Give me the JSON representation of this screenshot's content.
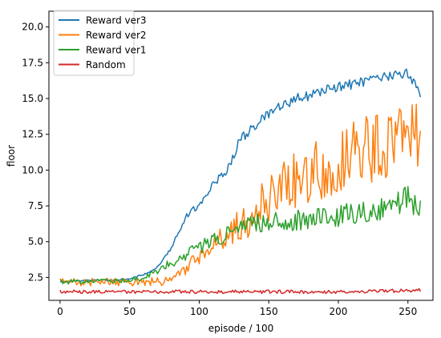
{
  "chart_data": {
    "type": "line",
    "xlabel": "episode / 100",
    "ylabel": "floor",
    "xlim": [
      -8,
      268
    ],
    "ylim": [
      0.9,
      21.1
    ],
    "xticks": [
      0,
      50,
      100,
      150,
      200,
      250
    ],
    "yticks": [
      2.5,
      5.0,
      7.5,
      10.0,
      12.5,
      15.0,
      17.5,
      20.0
    ],
    "xtick_labels": [
      "0",
      "50",
      "100",
      "150",
      "200",
      "250"
    ],
    "ytick_labels": [
      "2.5",
      "5.0",
      "7.5",
      "10.0",
      "12.5",
      "15.0",
      "17.5",
      "20.0"
    ],
    "grid": false,
    "legend_position": "top-left",
    "x_range": [
      0,
      259
    ],
    "series": [
      {
        "name": "Reward ver3",
        "color": "#1f77b4",
        "points": [
          [
            0,
            2.2
          ],
          [
            20,
            2.3
          ],
          [
            40,
            2.3
          ],
          [
            50,
            2.4
          ],
          [
            60,
            2.7
          ],
          [
            70,
            3.2
          ],
          [
            80,
            4.6
          ],
          [
            90,
            6.7
          ],
          [
            100,
            7.6
          ],
          [
            110,
            9.0
          ],
          [
            120,
            10.0
          ],
          [
            130,
            12.2
          ],
          [
            140,
            13.1
          ],
          [
            150,
            13.9
          ],
          [
            160,
            14.5
          ],
          [
            170,
            15.0
          ],
          [
            180,
            15.2
          ],
          [
            190,
            15.6
          ],
          [
            200,
            15.8
          ],
          [
            210,
            16.0
          ],
          [
            220,
            16.2
          ],
          [
            230,
            16.4
          ],
          [
            240,
            16.6
          ],
          [
            250,
            16.8
          ],
          [
            259,
            15.3
          ]
        ]
      },
      {
        "name": "Reward ver2",
        "color": "#ff7f0e",
        "points": [
          [
            0,
            2.2
          ],
          [
            20,
            2.2
          ],
          [
            40,
            2.2
          ],
          [
            60,
            2.2
          ],
          [
            70,
            2.2
          ],
          [
            80,
            2.3
          ],
          [
            90,
            3.0
          ],
          [
            100,
            4.0
          ],
          [
            110,
            4.8
          ],
          [
            120,
            5.4
          ],
          [
            130,
            6.1
          ],
          [
            140,
            7.2
          ],
          [
            150,
            7.8
          ],
          [
            160,
            8.7
          ],
          [
            170,
            9.4
          ],
          [
            180,
            9.7
          ],
          [
            190,
            10.2
          ],
          [
            200,
            10.8
          ],
          [
            210,
            11.3
          ],
          [
            220,
            11.6
          ],
          [
            230,
            11.5
          ],
          [
            240,
            12.0
          ],
          [
            250,
            13.0
          ],
          [
            259,
            12.6
          ]
        ]
      },
      {
        "name": "Reward ver1",
        "color": "#2ca02c",
        "points": [
          [
            0,
            2.2
          ],
          [
            20,
            2.2
          ],
          [
            40,
            2.3
          ],
          [
            50,
            2.3
          ],
          [
            60,
            2.5
          ],
          [
            70,
            3.0
          ],
          [
            80,
            3.5
          ],
          [
            90,
            4.1
          ],
          [
            100,
            4.6
          ],
          [
            110,
            5.0
          ],
          [
            120,
            5.5
          ],
          [
            130,
            5.9
          ],
          [
            140,
            6.3
          ],
          [
            150,
            6.5
          ],
          [
            160,
            6.4
          ],
          [
            170,
            6.5
          ],
          [
            180,
            6.6
          ],
          [
            190,
            6.7
          ],
          [
            200,
            6.8
          ],
          [
            210,
            7.0
          ],
          [
            220,
            7.1
          ],
          [
            230,
            7.2
          ],
          [
            240,
            7.6
          ],
          [
            250,
            8.0
          ],
          [
            259,
            7.3
          ]
        ]
      },
      {
        "name": "Random",
        "color": "#d62728",
        "points": [
          [
            0,
            1.5
          ],
          [
            50,
            1.5
          ],
          [
            100,
            1.5
          ],
          [
            150,
            1.5
          ],
          [
            200,
            1.5
          ],
          [
            259,
            1.6
          ]
        ]
      }
    ],
    "noise": [
      0.35,
      2.4,
      1.3,
      0.9,
      0.12
    ],
    "noise_scale_ref": [
      20,
      12.5,
      7.5,
      2
    ]
  }
}
